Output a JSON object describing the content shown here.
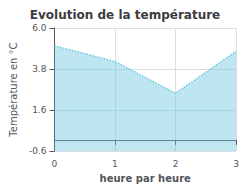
{
  "chart_data": {
    "type": "area",
    "title": "Evolution de la température",
    "xlabel": "heure par heure",
    "ylabel": "Température en °C",
    "x": [
      0,
      1,
      2,
      3
    ],
    "values": [
      5.05,
      4.2,
      2.5,
      4.75
    ],
    "color": "#6cc8e0",
    "line_style": "dotted",
    "xlim": [
      0,
      3
    ],
    "xticks": [
      0,
      1,
      2,
      3
    ],
    "ylim": [
      -0.6,
      6.0
    ],
    "yticks": [
      -0.6,
      1.6,
      3.8,
      {
        "value": 6,
        "label": "6.0"
      }
    ],
    "grid": true
  }
}
